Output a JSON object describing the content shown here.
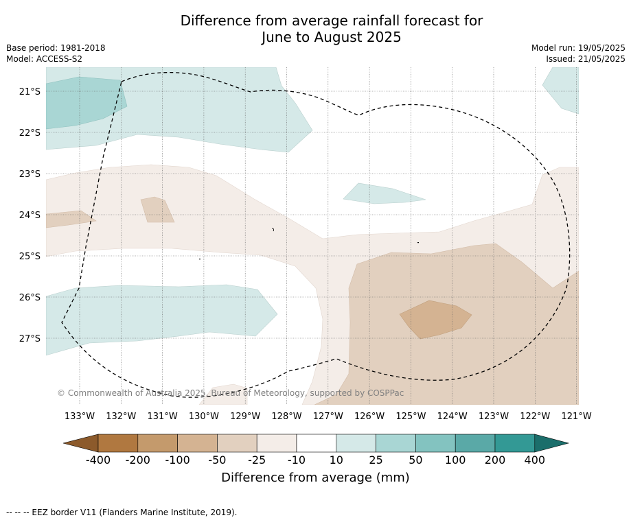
{
  "title_line1": "Difference from average rainfall forecast for",
  "title_line2": "June to August 2025",
  "base_period": "Base period: 1981-2018",
  "model": "Model: ACCESS-S2",
  "model_run": "Model run: 19/05/2025",
  "issued": "Issued: 21/05/2025",
  "latitudes": [
    "21°S",
    "22°S",
    "23°S",
    "24°S",
    "25°S",
    "26°S",
    "27°S"
  ],
  "longitudes": [
    "133°W",
    "132°W",
    "131°W",
    "130°W",
    "129°W",
    "128°W",
    "127°W",
    "126°W",
    "125°W",
    "124°W",
    "123°W",
    "122°W",
    "121°W"
  ],
  "copyright": "© Commonwealth of Australia 2025, Bureau of Meteorology, supported by COSPPac",
  "colorbar": {
    "labels": [
      "-400",
      "-200",
      "-100",
      "-50",
      "-25",
      "-10",
      "10",
      "25",
      "50",
      "100",
      "200",
      "400"
    ],
    "colors": [
      "#8c5a2b",
      "#b07840",
      "#c49a6c",
      "#d4b392",
      "#e2d0bf",
      "#f4ede8",
      "#ffffff",
      "#d5e9e8",
      "#a9d6d4",
      "#83c3c0",
      "#5aa9a7",
      "#339995",
      "#1b6e6b"
    ],
    "title": "Difference from average (mm)"
  },
  "footer": "--  --  -- EEZ border V11 (Flanders Marine Institute, 2019)."
}
